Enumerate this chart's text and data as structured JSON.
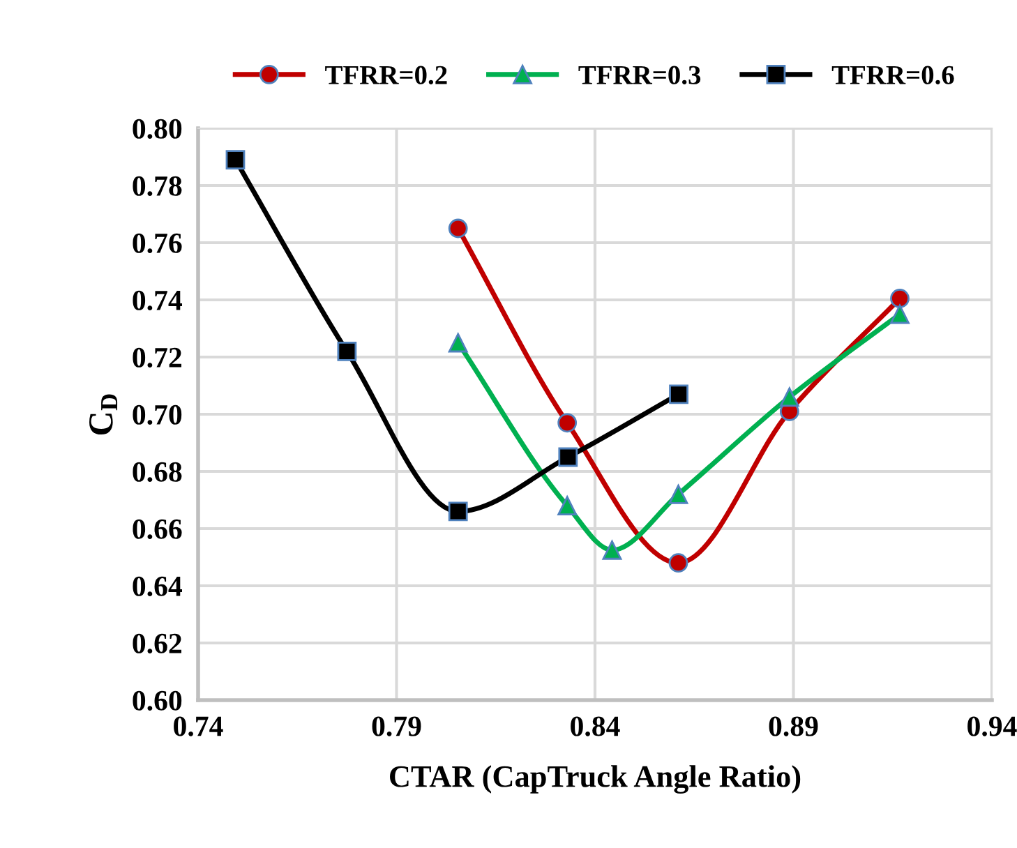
{
  "chart_data": {
    "type": "line",
    "xlabel": "CTAR (CapTruck Angle Ratio)",
    "ylabel": "C$_{D}$",
    "xlim": [
      0.74,
      0.94
    ],
    "xticks": [
      0.74,
      0.79,
      0.84,
      0.89,
      0.94
    ],
    "ylim": [
      0.6,
      0.8
    ],
    "yticks": [
      {
        "value": 0.6,
        "label": "0.60"
      },
      {
        "value": 0.62,
        "label": "0.62"
      },
      {
        "value": 0.64,
        "label": "0.64"
      },
      {
        "value": 0.66,
        "label": "0.66"
      },
      {
        "value": 0.68,
        "label": "0.68"
      },
      {
        "value": 0.7,
        "label": "0.70"
      },
      {
        "value": 0.72,
        "label": "0.72"
      },
      {
        "value": 0.74,
        "label": "0.74"
      },
      {
        "value": 0.76,
        "label": "0.76"
      },
      {
        "value": 0.78,
        "label": "0.78"
      },
      {
        "value": 0.8,
        "label": "0.80"
      }
    ],
    "grid": true,
    "legend": "top",
    "line_style": "solid",
    "series": [
      {
        "name": "TFRR=0.2",
        "color": "#c00000",
        "marker": "circle",
        "x": [
          0.8055,
          0.833,
          0.861,
          0.889,
          0.9168
        ],
        "values": [
          0.765,
          0.697,
          0.648,
          0.701,
          0.7405
        ]
      },
      {
        "name": "TFRR=0.3",
        "color": "#00b050",
        "marker": "triangle",
        "x": [
          0.8055,
          0.833,
          0.8443,
          0.861,
          0.889,
          0.9168
        ],
        "values": [
          0.725,
          0.668,
          0.6525,
          0.672,
          0.706,
          0.735
        ]
      },
      {
        "name": "TFRR=0.6",
        "color": "#000000",
        "marker": "square",
        "x": [
          0.7494,
          0.7775,
          0.8055,
          0.8332,
          0.8611
        ],
        "values": [
          0.789,
          0.722,
          0.666,
          0.685,
          0.707
        ]
      }
    ]
  }
}
